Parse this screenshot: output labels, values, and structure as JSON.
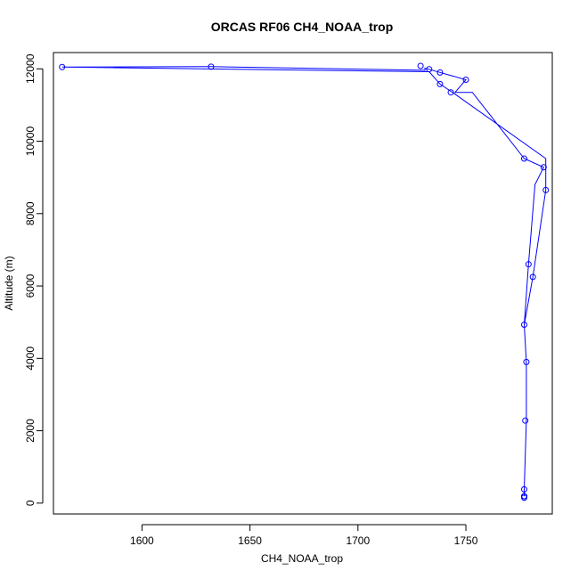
{
  "chart_data": {
    "type": "line",
    "title": "ORCAS RF06 CH4_NOAA_trop",
    "xlabel": "CH4_NOAA_trop",
    "ylabel": "Altitude (m)",
    "xlim": [
      1559,
      1790
    ],
    "ylim": [
      -300,
      12450
    ],
    "x_ticks": [
      1600,
      1650,
      1700,
      1750
    ],
    "y_ticks": [
      0,
      2000,
      4000,
      6000,
      8000,
      10000,
      12000
    ],
    "grid": false,
    "legend": "none",
    "colors": {
      "series": "#0000ff",
      "axes": "#000000"
    },
    "series": [
      {
        "points": [
          [
            1777,
            190
          ],
          [
            1777,
            380
          ],
          [
            1777,
            150
          ],
          [
            1777.5,
            2280
          ],
          [
            1778,
            3900
          ],
          [
            1777,
            4930
          ],
          [
            1779,
            6600
          ],
          [
            1786,
            9280
          ],
          [
            1777,
            9520
          ],
          [
            1743,
            11350
          ],
          [
            1750,
            11700
          ],
          [
            1738,
            11900
          ],
          [
            1733,
            11990
          ],
          [
            1729,
            12080
          ],
          [
            1632,
            12060
          ],
          [
            1563,
            12050
          ],
          [
            1738,
            11580
          ],
          [
            1787,
            8650
          ],
          [
            1781,
            6250
          ],
          [
            1777,
            190
          ]
        ],
        "line_path": [
          [
            1777,
            190
          ],
          [
            1777,
            380
          ],
          [
            1778,
            2280
          ],
          [
            1778,
            3900
          ],
          [
            1777,
            4930
          ],
          [
            1779,
            6600
          ],
          [
            1782,
            8800
          ],
          [
            1786,
            9280
          ],
          [
            1777,
            9520
          ],
          [
            1753,
            11350
          ],
          [
            1745,
            11350
          ],
          [
            1750,
            11700
          ],
          [
            1738,
            11900
          ],
          [
            1731,
            12020
          ],
          [
            1731,
            11960
          ],
          [
            1632,
            12060
          ],
          [
            1563,
            12050
          ],
          [
            1733,
            11920
          ],
          [
            1738,
            11580
          ],
          [
            1745,
            11300
          ],
          [
            1787,
            9520
          ],
          [
            1787,
            8650
          ],
          [
            1781,
            6250
          ],
          [
            1777,
            4930
          ]
        ]
      }
    ]
  }
}
